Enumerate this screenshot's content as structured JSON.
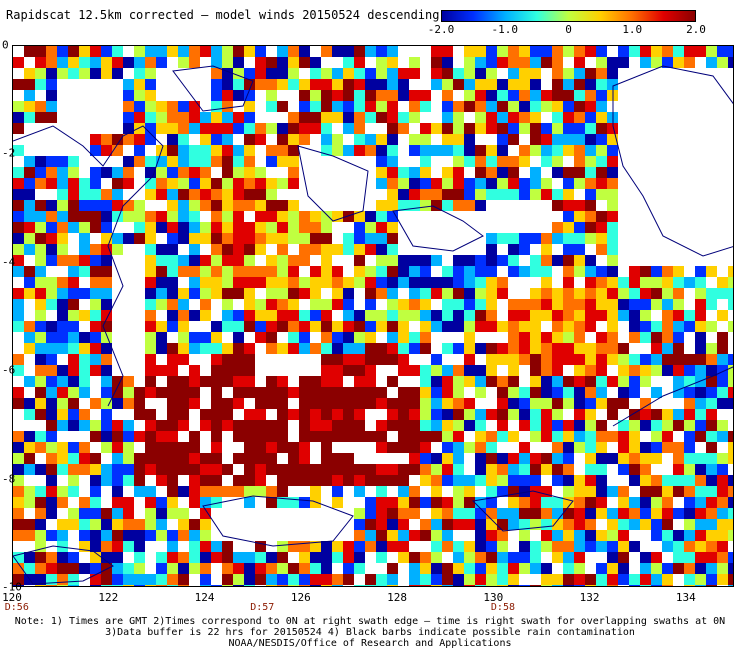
{
  "title": "Rapidscat 12.5km corrected — model winds 20150524 descending",
  "colorbar": {
    "labels": [
      "-2.0",
      "-1.0",
      "0",
      "1.0",
      "2.0"
    ],
    "values": [
      -2.0,
      -1.0,
      0,
      1.0,
      2.0
    ],
    "min": -2.0,
    "max": 2.0,
    "colors": [
      "#0000a0",
      "#0030ff",
      "#00b0ff",
      "#30ffe0",
      "#c0ff40",
      "#ffd000",
      "#ff7000",
      "#e00000",
      "#8b0000"
    ]
  },
  "axes": {
    "lat_labels": [
      "0",
      "-2",
      "-4",
      "-6",
      "-8",
      "-10"
    ],
    "lat_values": [
      0,
      -2,
      -4,
      -6,
      -8,
      -10
    ],
    "lon_labels": [
      "120",
      "122",
      "124",
      "126",
      "128",
      "130",
      "132",
      "134"
    ],
    "lon_values": [
      120,
      122,
      124,
      126,
      128,
      130,
      132,
      134
    ],
    "lon_range": [
      120,
      135
    ],
    "lat_range": [
      -10,
      0
    ]
  },
  "time_labels": [
    {
      "text": "D:56",
      "lon": 120.1
    },
    {
      "text": "D:57",
      "lon": 125.2
    },
    {
      "text": "D:58",
      "lon": 130.2
    }
  ],
  "notes": [
    "Note: 1) Times are GMT 2)Times correspond to 0N at right swath edge — time is right swath for overlapping swaths at 0N",
    "3)Data buffer is 22 hrs for 20150524 4) Black barbs indicate possible rain contamination",
    "NOAA/NESDIS/Office of Research and Applications"
  ]
}
